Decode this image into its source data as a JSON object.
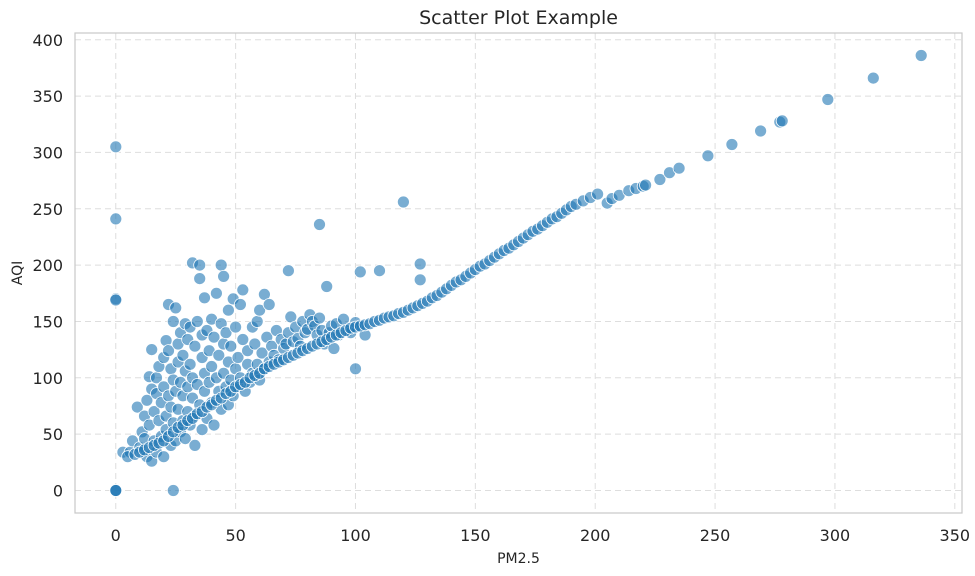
{
  "chart_data": {
    "type": "scatter",
    "title": "Scatter Plot Example",
    "xlabel": "PM2.5",
    "ylabel": "AQI",
    "xlim": [
      -17,
      353
    ],
    "ylim": [
      -20,
      406
    ],
    "xticks": [
      0,
      50,
      100,
      150,
      200,
      250,
      300,
      350
    ],
    "yticks": [
      0,
      50,
      100,
      150,
      200,
      250,
      300,
      350,
      400
    ],
    "grid": true,
    "color": "#1f77b4",
    "points": [
      [
        0,
        0
      ],
      [
        0,
        0
      ],
      [
        0,
        0
      ],
      [
        0,
        170
      ],
      [
        0,
        169
      ],
      [
        0,
        241
      ],
      [
        0,
        305
      ],
      [
        24,
        0
      ],
      [
        3,
        34
      ],
      [
        6,
        34
      ],
      [
        7,
        44
      ],
      [
        9,
        74
      ],
      [
        10,
        38
      ],
      [
        11,
        52
      ],
      [
        12,
        46
      ],
      [
        12,
        66
      ],
      [
        13,
        80
      ],
      [
        13,
        30
      ],
      [
        14,
        101
      ],
      [
        14,
        58
      ],
      [
        15,
        125
      ],
      [
        15,
        90
      ],
      [
        15,
        26
      ],
      [
        16,
        70
      ],
      [
        16,
        44
      ],
      [
        17,
        86
      ],
      [
        17,
        100
      ],
      [
        17,
        34
      ],
      [
        18,
        62
      ],
      [
        18,
        110
      ],
      [
        19,
        48
      ],
      [
        19,
        78
      ],
      [
        20,
        92
      ],
      [
        20,
        30
      ],
      [
        20,
        118
      ],
      [
        21,
        133
      ],
      [
        21,
        54
      ],
      [
        21,
        66
      ],
      [
        22,
        124
      ],
      [
        22,
        84
      ],
      [
        22,
        165
      ],
      [
        23,
        40
      ],
      [
        23,
        108
      ],
      [
        23,
        74
      ],
      [
        24,
        98
      ],
      [
        24,
        150
      ],
      [
        24,
        60
      ],
      [
        25,
        162
      ],
      [
        25,
        88
      ],
      [
        25,
        44
      ],
      [
        26,
        130
      ],
      [
        26,
        72
      ],
      [
        26,
        114
      ],
      [
        27,
        52
      ],
      [
        27,
        96
      ],
      [
        27,
        140
      ],
      [
        28,
        84
      ],
      [
        28,
        62
      ],
      [
        28,
        120
      ],
      [
        29,
        106
      ],
      [
        29,
        148
      ],
      [
        29,
        46
      ],
      [
        30,
        92
      ],
      [
        30,
        70
      ],
      [
        30,
        134
      ],
      [
        31,
        58
      ],
      [
        31,
        112
      ],
      [
        31,
        145
      ],
      [
        32,
        202
      ],
      [
        32,
        82
      ],
      [
        32,
        100
      ],
      [
        33,
        40
      ],
      [
        33,
        128
      ],
      [
        33,
        66
      ],
      [
        34,
        150
      ],
      [
        34,
        94
      ],
      [
        35,
        188
      ],
      [
        35,
        76
      ],
      [
        35,
        200
      ],
      [
        36,
        118
      ],
      [
        36,
        54
      ],
      [
        36,
        138
      ],
      [
        37,
        171
      ],
      [
        37,
        88
      ],
      [
        37,
        104
      ],
      [
        38,
        142
      ],
      [
        38,
        64
      ],
      [
        39,
        124
      ],
      [
        39,
        96
      ],
      [
        40,
        152
      ],
      [
        40,
        78
      ],
      [
        40,
        110
      ],
      [
        41,
        136
      ],
      [
        41,
        58
      ],
      [
        42,
        175
      ],
      [
        42,
        100
      ],
      [
        43,
        120
      ],
      [
        43,
        88
      ],
      [
        44,
        200
      ],
      [
        44,
        148
      ],
      [
        44,
        72
      ],
      [
        45,
        190
      ],
      [
        45,
        130
      ],
      [
        45,
        104
      ],
      [
        46,
        92
      ],
      [
        46,
        140
      ],
      [
        47,
        160
      ],
      [
        47,
        114
      ],
      [
        47,
        76
      ],
      [
        48,
        98
      ],
      [
        48,
        128
      ],
      [
        49,
        170
      ],
      [
        49,
        84
      ],
      [
        50,
        108
      ],
      [
        50,
        145
      ],
      [
        51,
        92
      ],
      [
        51,
        118
      ],
      [
        52,
        165
      ],
      [
        52,
        100
      ],
      [
        53,
        178
      ],
      [
        53,
        134
      ],
      [
        54,
        88
      ],
      [
        55,
        112
      ],
      [
        55,
        124
      ],
      [
        56,
        96
      ],
      [
        57,
        145
      ],
      [
        57,
        104
      ],
      [
        58,
        130
      ],
      [
        59,
        150
      ],
      [
        59,
        112
      ],
      [
        60,
        160
      ],
      [
        60,
        98
      ],
      [
        61,
        122
      ],
      [
        62,
        174
      ],
      [
        62,
        108
      ],
      [
        63,
        136
      ],
      [
        64,
        165
      ],
      [
        64,
        114
      ],
      [
        65,
        128
      ],
      [
        66,
        120
      ],
      [
        67,
        142
      ],
      [
        68,
        116
      ],
      [
        69,
        134
      ],
      [
        70,
        126
      ],
      [
        71,
        130
      ],
      [
        72,
        195
      ],
      [
        72,
        140
      ],
      [
        73,
        154
      ],
      [
        74,
        132
      ],
      [
        75,
        145
      ],
      [
        76,
        135
      ],
      [
        77,
        128
      ],
      [
        78,
        150
      ],
      [
        79,
        140
      ],
      [
        80,
        143
      ],
      [
        81,
        156
      ],
      [
        82,
        150
      ],
      [
        83,
        146
      ],
      [
        84,
        138
      ],
      [
        85,
        236
      ],
      [
        85,
        153
      ],
      [
        86,
        142
      ],
      [
        87,
        130
      ],
      [
        88,
        181
      ],
      [
        89,
        140
      ],
      [
        90,
        146
      ],
      [
        91,
        126
      ],
      [
        92,
        148
      ],
      [
        93,
        138
      ],
      [
        95,
        152
      ],
      [
        97,
        142
      ],
      [
        98,
        140
      ],
      [
        100,
        108
      ],
      [
        100,
        149
      ],
      [
        102,
        194
      ],
      [
        102,
        145
      ],
      [
        104,
        138
      ],
      [
        110,
        195
      ],
      [
        120,
        256
      ],
      [
        127,
        201
      ],
      [
        127,
        187
      ],
      [
        5,
        30
      ],
      [
        8,
        32
      ],
      [
        10,
        34
      ],
      [
        12,
        36
      ],
      [
        14,
        38
      ],
      [
        16,
        40
      ],
      [
        18,
        42
      ],
      [
        20,
        44
      ],
      [
        22,
        48
      ],
      [
        24,
        52
      ],
      [
        26,
        56
      ],
      [
        28,
        58
      ],
      [
        30,
        62
      ],
      [
        32,
        64
      ],
      [
        34,
        68
      ],
      [
        36,
        70
      ],
      [
        38,
        74
      ],
      [
        40,
        76
      ],
      [
        42,
        80
      ],
      [
        44,
        82
      ],
      [
        46,
        86
      ],
      [
        48,
        88
      ],
      [
        50,
        92
      ],
      [
        52,
        94
      ],
      [
        54,
        96
      ],
      [
        56,
        100
      ],
      [
        58,
        102
      ],
      [
        60,
        104
      ],
      [
        62,
        108
      ],
      [
        64,
        110
      ],
      [
        66,
        112
      ],
      [
        68,
        114
      ],
      [
        70,
        116
      ],
      [
        72,
        118
      ],
      [
        74,
        120
      ],
      [
        76,
        122
      ],
      [
        78,
        124
      ],
      [
        80,
        126
      ],
      [
        82,
        128
      ],
      [
        84,
        130
      ],
      [
        86,
        132
      ],
      [
        88,
        134
      ],
      [
        90,
        136
      ],
      [
        92,
        138
      ],
      [
        94,
        140
      ],
      [
        96,
        142
      ],
      [
        98,
        144
      ],
      [
        100,
        145
      ],
      [
        102,
        146
      ],
      [
        104,
        147
      ],
      [
        106,
        148
      ],
      [
        108,
        150
      ],
      [
        110,
        151
      ],
      [
        112,
        153
      ],
      [
        114,
        154
      ],
      [
        116,
        155
      ],
      [
        118,
        157
      ],
      [
        120,
        158
      ],
      [
        122,
        160
      ],
      [
        124,
        162
      ],
      [
        126,
        164
      ],
      [
        128,
        166
      ],
      [
        130,
        168
      ],
      [
        132,
        171
      ],
      [
        134,
        173
      ],
      [
        136,
        176
      ],
      [
        138,
        179
      ],
      [
        140,
        182
      ],
      [
        142,
        185
      ],
      [
        144,
        187
      ],
      [
        146,
        190
      ],
      [
        148,
        193
      ],
      [
        150,
        196
      ],
      [
        152,
        199
      ],
      [
        154,
        201
      ],
      [
        156,
        204
      ],
      [
        158,
        207
      ],
      [
        160,
        210
      ],
      [
        162,
        213
      ],
      [
        164,
        215
      ],
      [
        166,
        218
      ],
      [
        168,
        221
      ],
      [
        170,
        224
      ],
      [
        172,
        227
      ],
      [
        174,
        230
      ],
      [
        176,
        232
      ],
      [
        178,
        235
      ],
      [
        180,
        238
      ],
      [
        182,
        241
      ],
      [
        184,
        243
      ],
      [
        186,
        246
      ],
      [
        188,
        249
      ],
      [
        190,
        252
      ],
      [
        192,
        254
      ],
      [
        195,
        257
      ],
      [
        198,
        260
      ],
      [
        201,
        263
      ],
      [
        205,
        255
      ],
      [
        207,
        259
      ],
      [
        210,
        262
      ],
      [
        214,
        266
      ],
      [
        217,
        268
      ],
      [
        220,
        270
      ],
      [
        221,
        271
      ],
      [
        227,
        276
      ],
      [
        231,
        282
      ],
      [
        235,
        286
      ],
      [
        247,
        297
      ],
      [
        257,
        307
      ],
      [
        269,
        319
      ],
      [
        277,
        327
      ],
      [
        278,
        328
      ],
      [
        297,
        347
      ],
      [
        316,
        366
      ],
      [
        336,
        386
      ]
    ]
  }
}
